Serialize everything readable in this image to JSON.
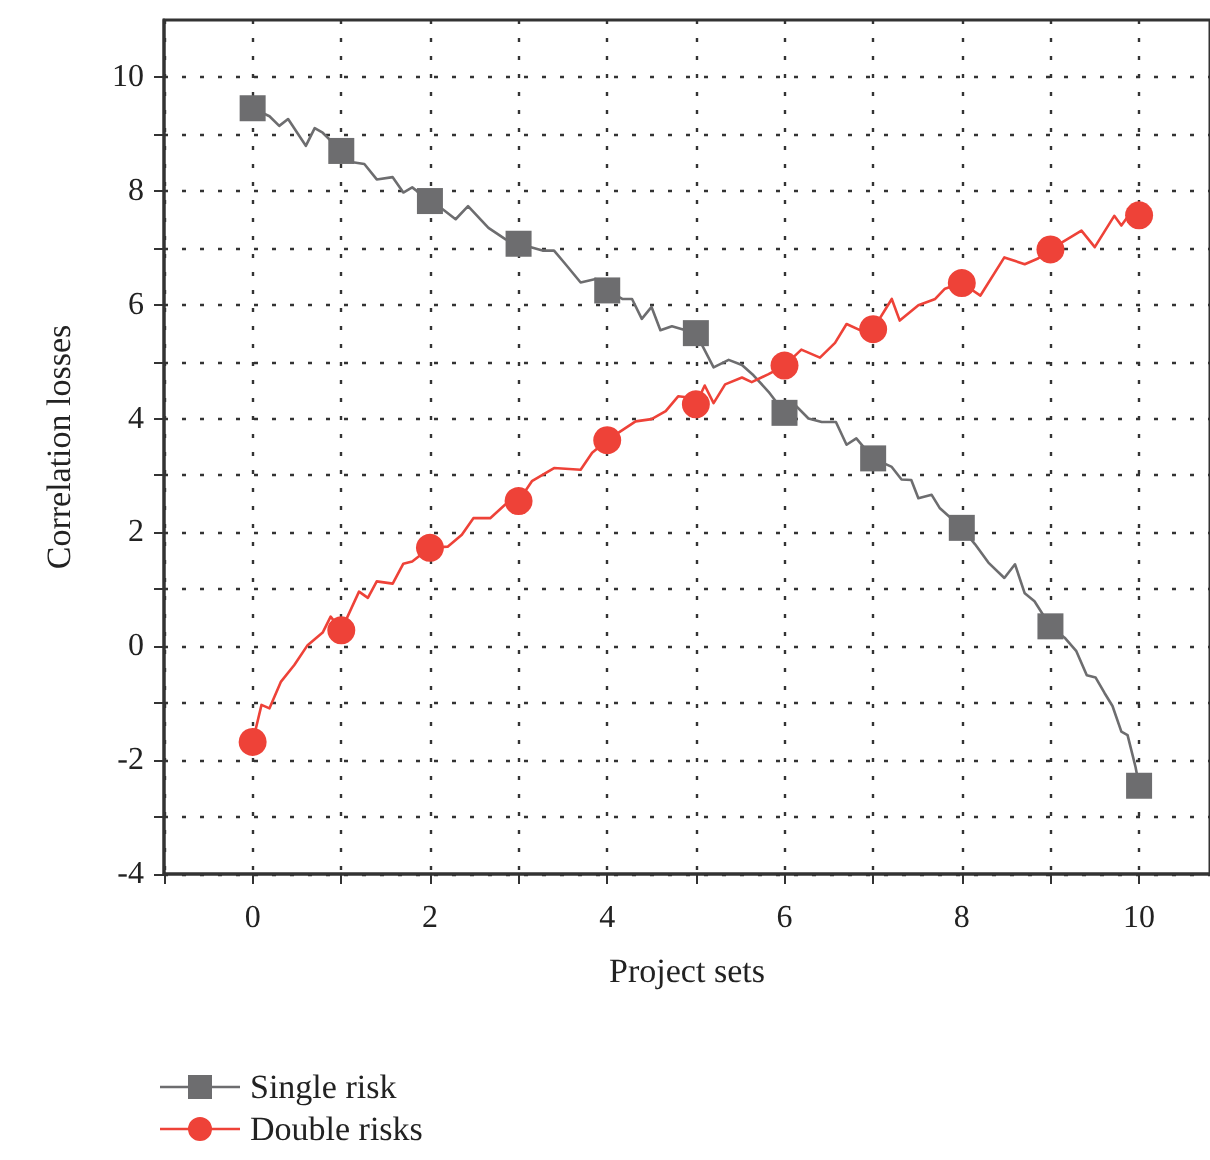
{
  "chart_data": {
    "type": "line",
    "xlabel": "Project sets",
    "ylabel": "Correlation losses",
    "xlim": [
      -1,
      10.8
    ],
    "ylim": [
      -4,
      11
    ],
    "xticks": [
      {
        "value": -1,
        "label": null
      },
      0,
      {
        "value": 1,
        "label": null
      },
      2,
      {
        "value": 3,
        "label": null
      },
      4,
      {
        "value": 5,
        "label": null
      },
      6,
      {
        "value": 7,
        "label": null
      },
      8,
      {
        "value": 9,
        "label": null
      },
      10
    ],
    "yticks": [
      -4,
      {
        "value": -3,
        "label": null
      },
      -2,
      {
        "value": -1,
        "label": null
      },
      0,
      {
        "value": 1,
        "label": null
      },
      2,
      {
        "value": 3,
        "label": null
      },
      4,
      {
        "value": 5,
        "label": null
      },
      6,
      {
        "value": 7,
        "label": null
      },
      8,
      {
        "value": 9,
        "label": null
      },
      10
    ],
    "grid": true,
    "legend": "bottom left",
    "line_style": "solid",
    "series": [
      {
        "name": "Single risk",
        "type": "scatter",
        "color": "#6d6d6f",
        "marker": "square",
        "x": [
          0,
          1,
          2,
          3,
          4,
          5,
          6,
          7,
          8,
          9,
          10
        ],
        "values": [
          9.45,
          8.7,
          7.82,
          7.07,
          6.25,
          5.5,
          4.1,
          3.3,
          2.08,
          0.35,
          -2.45
        ]
      },
      {
        "name": "Double risks",
        "type": "scatter",
        "color": "#ee4238",
        "marker": "circle",
        "x": [
          0,
          1,
          2,
          3,
          4,
          5,
          6,
          7,
          8,
          9,
          10
        ],
        "values": [
          -1.68,
          0.28,
          1.73,
          2.55,
          3.62,
          4.25,
          4.93,
          5.57,
          6.38,
          6.97,
          7.57
        ]
      },
      {
        "color": "#6d6d6f",
        "marker": "none",
        "x": [
          0,
          0.19,
          0.3,
          0.4,
          0.6,
          0.7,
          0.79,
          1,
          1.13,
          1.26,
          1.4,
          1.58,
          1.7,
          1.8,
          2,
          2.14,
          2.29,
          2.43,
          2.66,
          2.85,
          3,
          3.27,
          3.4,
          3.53,
          3.7,
          3.87,
          4,
          4.17,
          4.28,
          4.39,
          4.5,
          4.6,
          4.73,
          5,
          5.2,
          5.37,
          5.52,
          5.65,
          5.82,
          6,
          6.08,
          6.27,
          6.42,
          6.58,
          6.7,
          6.81,
          7,
          7.21,
          7.32,
          7.43,
          7.51,
          7.66,
          7.75,
          8,
          8.15,
          8.3,
          8.48,
          8.6,
          8.71,
          8.82,
          9,
          9.16,
          9.29,
          9.41,
          9.51,
          9.61,
          9.7,
          9.8,
          9.87,
          9.96,
          10
        ],
        "values": [
          9.45,
          9.31,
          9.14,
          9.26,
          8.79,
          9.1,
          9.02,
          8.7,
          8.5,
          8.47,
          8.2,
          8.24,
          7.97,
          8.06,
          7.82,
          7.68,
          7.5,
          7.73,
          7.35,
          7.15,
          7.07,
          6.95,
          6.95,
          6.71,
          6.39,
          6.45,
          6.25,
          6.1,
          6.1,
          5.75,
          5.96,
          5.55,
          5.62,
          5.5,
          4.9,
          5.03,
          4.94,
          4.76,
          4.47,
          4.1,
          4.3,
          4.0,
          3.94,
          3.94,
          3.54,
          3.65,
          3.3,
          3.15,
          2.93,
          2.92,
          2.6,
          2.66,
          2.43,
          2.08,
          1.79,
          1.47,
          1.2,
          1.44,
          0.93,
          0.79,
          0.35,
          0.15,
          -0.08,
          -0.51,
          -0.55,
          -0.82,
          -1.05,
          -1.5,
          -1.56,
          -2.12,
          -2.45
        ]
      },
      {
        "color": "#ee4238",
        "marker": "none",
        "x": [
          0,
          0.1,
          0.19,
          0.32,
          0.47,
          0.62,
          0.79,
          0.88,
          1,
          1.2,
          1.3,
          1.4,
          1.58,
          1.7,
          1.8,
          2,
          2.2,
          2.36,
          2.49,
          2.68,
          2.85,
          3,
          3.15,
          3.4,
          3.7,
          3.83,
          4,
          4.32,
          4.5,
          4.66,
          4.8,
          4.92,
          5,
          5.1,
          5.2,
          5.33,
          5.52,
          5.63,
          5.82,
          6,
          6.19,
          6.4,
          6.57,
          6.7,
          6.87,
          7,
          7.21,
          7.3,
          7.51,
          7.7,
          7.81,
          8,
          8.21,
          8.48,
          8.71,
          8.86,
          9,
          9.35,
          9.5,
          9.72,
          9.8,
          9.87,
          10
        ],
        "values": [
          -1.68,
          -1.03,
          -1.09,
          -0.62,
          -0.33,
          0.02,
          0.24,
          0.52,
          0.28,
          0.96,
          0.85,
          1.14,
          1.1,
          1.45,
          1.49,
          1.73,
          1.75,
          1.96,
          2.25,
          2.25,
          2.49,
          2.55,
          2.9,
          3.13,
          3.1,
          3.4,
          3.62,
          3.95,
          3.99,
          4.13,
          4.39,
          4.37,
          4.25,
          4.58,
          4.27,
          4.6,
          4.72,
          4.64,
          4.78,
          4.93,
          5.21,
          5.07,
          5.33,
          5.66,
          5.54,
          5.57,
          6.1,
          5.72,
          5.99,
          6.1,
          6.28,
          6.38,
          6.16,
          6.83,
          6.71,
          6.81,
          6.97,
          7.3,
          7.01,
          7.56,
          7.39,
          7.54,
          7.57
        ]
      }
    ]
  }
}
